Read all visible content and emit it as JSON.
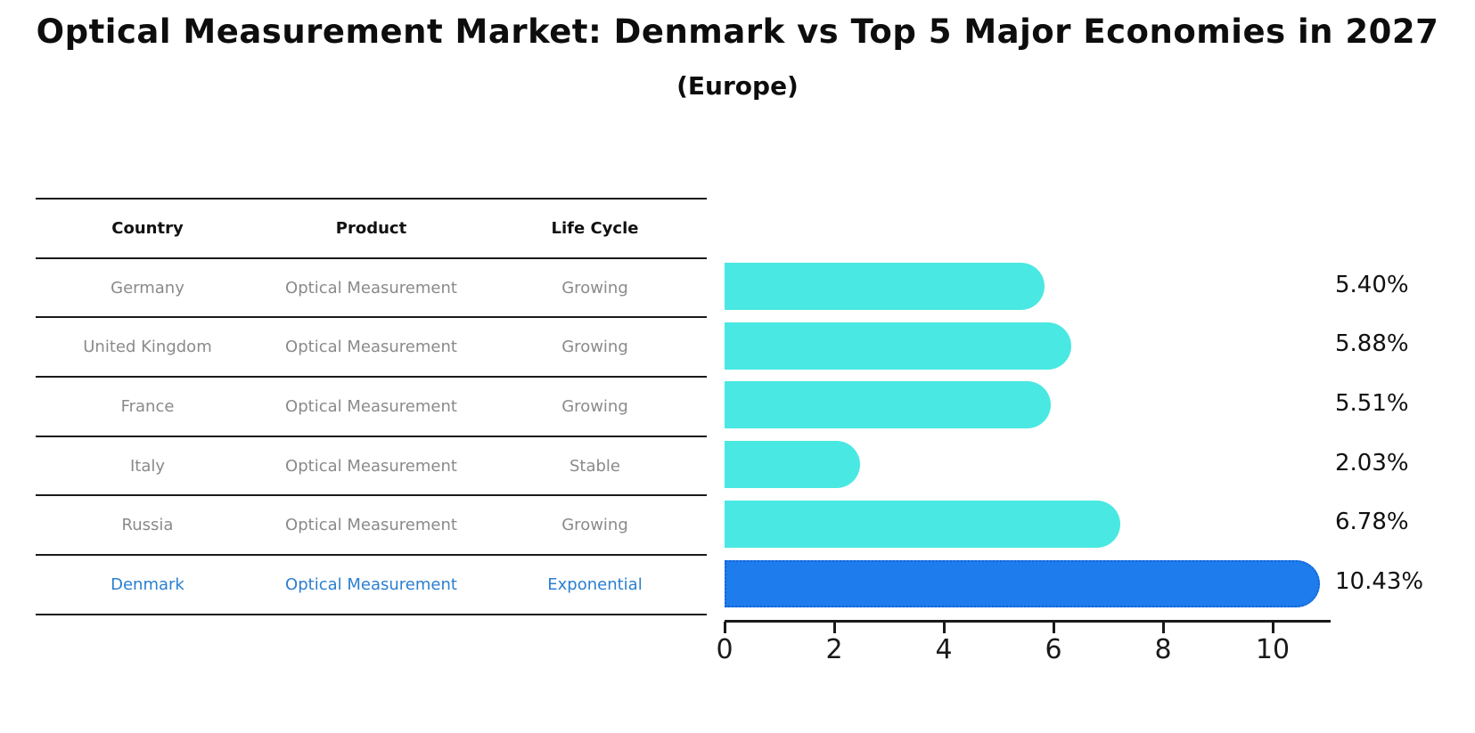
{
  "title": "Optical Measurement Market: Denmark vs Top 5 Major Economies in 2027",
  "subtitle": "(Europe)",
  "table": {
    "headers": [
      "Country",
      "Product",
      "Life Cycle"
    ],
    "rows": [
      {
        "country": "Germany",
        "product": "Optical Measurement",
        "life_cycle": "Growing",
        "highlight": false
      },
      {
        "country": "United Kingdom",
        "product": "Optical Measurement",
        "life_cycle": "Growing",
        "highlight": false
      },
      {
        "country": "France",
        "product": "Optical Measurement",
        "life_cycle": "Growing",
        "highlight": false
      },
      {
        "country": "Italy",
        "product": "Optical Measurement",
        "life_cycle": "Stable",
        "highlight": false
      },
      {
        "country": "Russia",
        "product": "Optical Measurement",
        "life_cycle": "Growing",
        "highlight": false
      },
      {
        "country": "Denmark",
        "product": "Optical Measurement",
        "life_cycle": "Exponential",
        "highlight": true
      }
    ]
  },
  "chart_data": {
    "type": "bar",
    "orientation": "horizontal",
    "title": "Optical Measurement Market: Denmark vs Top 5 Major Economies in 2027",
    "subtitle": "(Europe)",
    "categories": [
      "Germany",
      "United Kingdom",
      "France",
      "Italy",
      "Russia",
      "Denmark"
    ],
    "values": [
      5.4,
      5.88,
      5.51,
      2.03,
      6.78,
      10.43
    ],
    "value_labels": [
      "5.40%",
      "5.88%",
      "5.51%",
      "2.03%",
      "6.78%",
      "10.43%"
    ],
    "x_ticks": [
      0,
      2,
      4,
      6,
      8,
      10
    ],
    "xlim": [
      0,
      11
    ],
    "grid": false,
    "legend": "none",
    "bar_color": "#4AE8E2",
    "highlight_index": 5,
    "highlight_color": "#1E7CEC",
    "highlight_edge_color": "#1464d8",
    "highlight_text_color": "#2a7fd0",
    "row_text_color": "#8a8a8a",
    "label_color": "#111111"
  }
}
